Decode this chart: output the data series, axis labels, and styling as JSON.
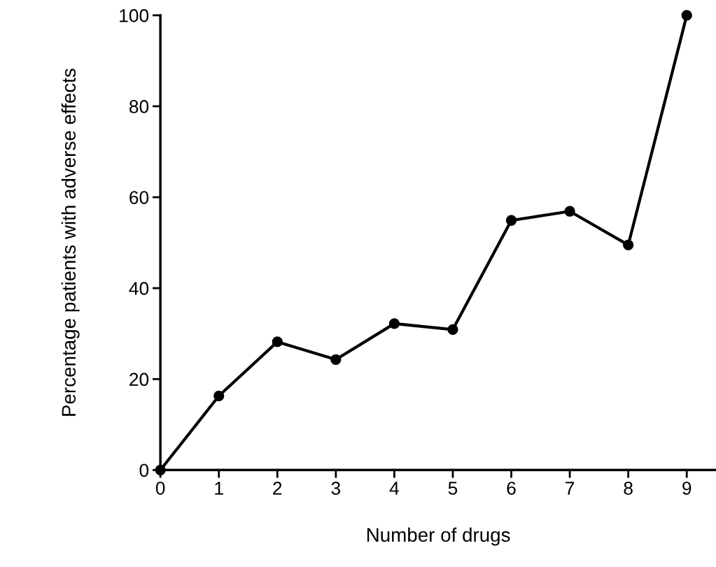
{
  "chart_data": {
    "type": "line",
    "xlabel": "Number of drugs",
    "ylabel": "Percentage patients with adverse effects",
    "x": [
      0,
      1,
      2,
      3,
      4,
      5,
      6,
      7,
      8,
      9
    ],
    "values": [
      0,
      16.3,
      28.2,
      24.3,
      32.2,
      30.9,
      54.9,
      56.9,
      49.5,
      100
    ],
    "color": "#000000",
    "marker": "circle",
    "line_style": "solid",
    "xlim": [
      0,
      9.5
    ],
    "xticks": [
      0,
      1,
      2,
      3,
      4,
      5,
      6,
      7,
      8,
      9
    ],
    "ylim": [
      0,
      100
    ],
    "yticks": [
      0,
      20,
      40,
      60,
      80,
      100
    ],
    "grid": false,
    "legend": false
  }
}
